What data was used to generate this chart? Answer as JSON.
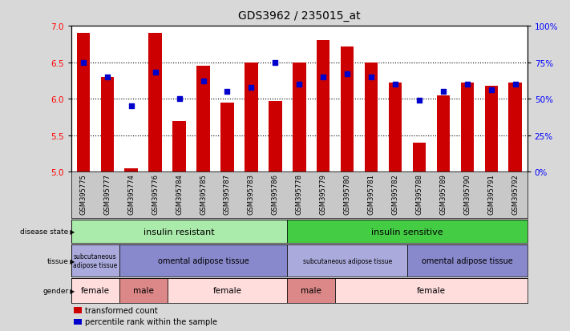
{
  "title": "GDS3962 / 235015_at",
  "samples": [
    "GSM395775",
    "GSM395777",
    "GSM395774",
    "GSM395776",
    "GSM395784",
    "GSM395785",
    "GSM395787",
    "GSM395783",
    "GSM395786",
    "GSM395778",
    "GSM395779",
    "GSM395780",
    "GSM395781",
    "GSM395782",
    "GSM395788",
    "GSM395789",
    "GSM395790",
    "GSM395791",
    "GSM395792"
  ],
  "bar_values": [
    6.9,
    6.3,
    5.05,
    6.9,
    5.7,
    6.45,
    5.95,
    6.5,
    5.97,
    6.5,
    6.8,
    6.72,
    6.5,
    6.22,
    5.4,
    6.05,
    6.22,
    6.18,
    6.22
  ],
  "dot_percentiles": [
    75,
    65,
    45,
    68,
    50,
    62,
    55,
    58,
    75,
    60,
    65,
    67,
    65,
    60,
    49,
    55,
    60,
    56,
    60
  ],
  "ymin": 5.0,
  "ymax": 7.0,
  "yticks": [
    5.0,
    5.5,
    6.0,
    6.5,
    7.0
  ],
  "right_yticks": [
    0,
    25,
    50,
    75,
    100
  ],
  "bar_color": "#cc0000",
  "dot_color": "#0000cc",
  "bar_bottom": 5.0,
  "background_color": "#d8d8d8",
  "plot_bg_color": "#ffffff",
  "xtick_bg_color": "#c8c8c8",
  "disease_state_groups": [
    {
      "label": "insulin resistant",
      "start": 0,
      "end": 9,
      "color": "#aaeaaa"
    },
    {
      "label": "insulin sensitive",
      "start": 9,
      "end": 19,
      "color": "#44cc44"
    }
  ],
  "tissue_groups": [
    {
      "label": "subcutaneous\nadipose tissue",
      "start": 0,
      "end": 2,
      "color": "#aaaadd"
    },
    {
      "label": "omental adipose tissue",
      "start": 2,
      "end": 9,
      "color": "#8888cc"
    },
    {
      "label": "subcutaneous adipose tissue",
      "start": 9,
      "end": 14,
      "color": "#aaaadd"
    },
    {
      "label": "omental adipose tissue",
      "start": 14,
      "end": 19,
      "color": "#8888cc"
    }
  ],
  "gender_groups": [
    {
      "label": "female",
      "start": 0,
      "end": 2,
      "color": "#ffdddd"
    },
    {
      "label": "male",
      "start": 2,
      "end": 4,
      "color": "#dd8888"
    },
    {
      "label": "female",
      "start": 4,
      "end": 9,
      "color": "#ffdddd"
    },
    {
      "label": "male",
      "start": 9,
      "end": 11,
      "color": "#dd8888"
    },
    {
      "label": "female",
      "start": 11,
      "end": 19,
      "color": "#ffdddd"
    }
  ],
  "legend_items": [
    {
      "label": "transformed count",
      "color": "#cc0000"
    },
    {
      "label": "percentile rank within the sample",
      "color": "#0000cc"
    }
  ]
}
